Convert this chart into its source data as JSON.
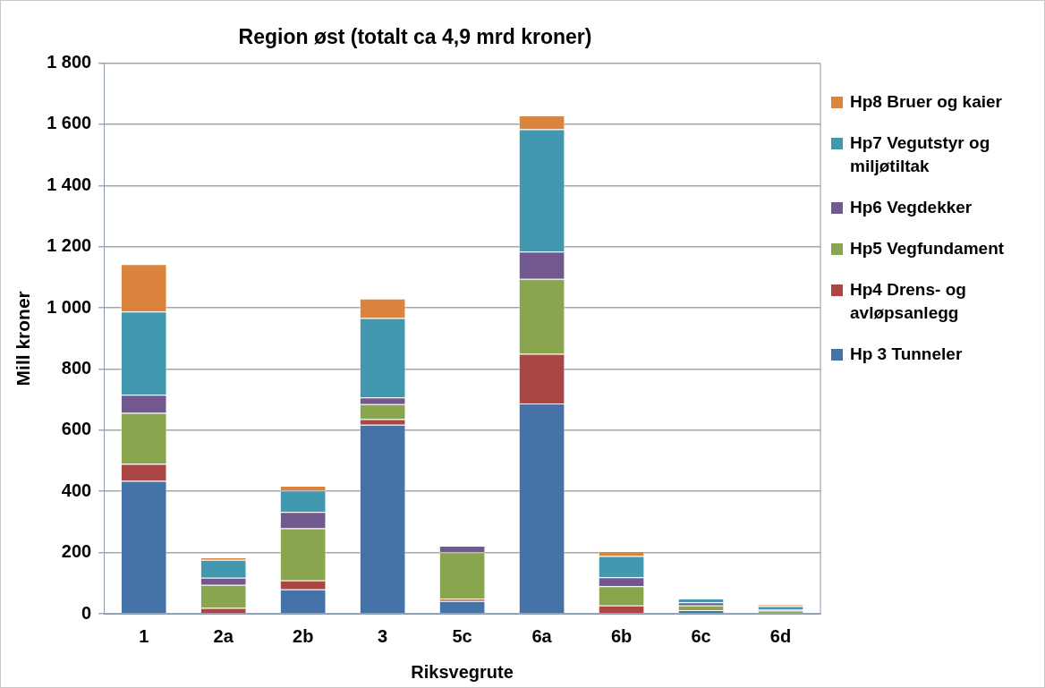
{
  "chart_data": {
    "type": "bar",
    "title": "Region øst (totalt ca 4,9 mrd kroner)",
    "xlabel": "Riksvegrute",
    "ylabel": "Mill kroner",
    "categories": [
      "1",
      "2a",
      "2b",
      "3",
      "5c",
      "6a",
      "6b",
      "6c",
      "6d"
    ],
    "stacked": true,
    "series": [
      {
        "name": "Hp 3 Tunneler",
        "color": "#4572a7",
        "values": [
          434,
          0,
          80,
          618,
          42,
          687,
          0,
          12,
          0
        ]
      },
      {
        "name": "Hp4 Drens- og avløpsanlegg",
        "color": "#aa4643",
        "values": [
          56,
          19,
          29,
          18,
          7,
          163,
          27,
          0,
          0
        ]
      },
      {
        "name": "Hp5 Vegfundament",
        "color": "#89a54e",
        "values": [
          167,
          75,
          170,
          49,
          152,
          245,
          63,
          15,
          10
        ]
      },
      {
        "name": "Hp6 Vegdekker",
        "color": "#71588f",
        "values": [
          59,
          24,
          54,
          22,
          21,
          89,
          29,
          10,
          3
        ]
      },
      {
        "name": "Hp7 Vegutstyr og miljøtiltak",
        "color": "#4198af",
        "values": [
          272,
          58,
          70,
          260,
          0,
          400,
          70,
          13,
          12
        ]
      },
      {
        "name": "Hp8 Bruer og kaier",
        "color": "#db843d",
        "values": [
          155,
          8,
          15,
          63,
          0,
          45,
          15,
          0,
          5
        ]
      }
    ],
    "ylim": [
      0,
      1800
    ],
    "yticks": [
      0,
      200,
      400,
      600,
      800,
      {
        "value": 1000,
        "label": "1 000"
      },
      {
        "value": 1200,
        "label": "1 200"
      },
      {
        "value": 1400,
        "label": "1 400"
      },
      {
        "value": 1600,
        "label": "1 600"
      },
      {
        "value": 1800,
        "label": "1 800"
      }
    ],
    "grid": "y",
    "legend": "right"
  }
}
